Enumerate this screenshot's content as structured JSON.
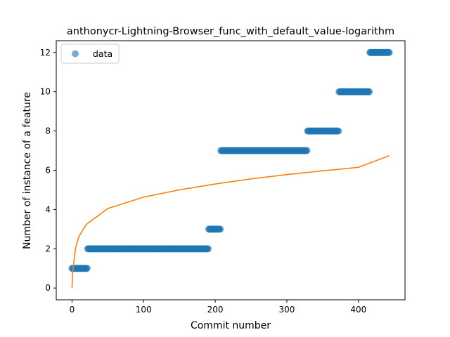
{
  "chart_data": {
    "type": "scatter",
    "title": "anthonycr-Lightning-Browser_func_with_default_value-logarithm",
    "xlabel": "Commit number",
    "ylabel": "Number of instance of a feature",
    "xlim": [
      -22,
      465
    ],
    "ylim": [
      -0.6,
      12.6
    ],
    "xticks": [
      0,
      100,
      200,
      300,
      400
    ],
    "yticks": [
      0,
      2,
      4,
      6,
      8,
      10,
      12
    ],
    "grid": false,
    "legend_position": "top-left",
    "series": [
      {
        "name": "data",
        "kind": "scatter",
        "color": "#1f77b4",
        "steps": [
          {
            "x_start": 0,
            "x_end": 21,
            "y": 1
          },
          {
            "x_start": 22,
            "x_end": 190,
            "y": 2
          },
          {
            "x_start": 191,
            "x_end": 207,
            "y": 3
          },
          {
            "x_start": 208,
            "x_end": 328,
            "y": 7
          },
          {
            "x_start": 329,
            "x_end": 372,
            "y": 8
          },
          {
            "x_start": 373,
            "x_end": 415,
            "y": 10
          },
          {
            "x_start": 416,
            "x_end": 443,
            "y": 12
          }
        ]
      },
      {
        "kind": "line",
        "color": "#ff7f0e",
        "fit": "logarithmic",
        "points": [
          [
            0,
            0
          ],
          [
            1,
            0.83
          ],
          [
            5,
            2.05
          ],
          [
            10,
            2.65
          ],
          [
            20,
            3.24
          ],
          [
            50,
            4.05
          ],
          [
            100,
            4.63
          ],
          [
            150,
            5.0
          ],
          [
            200,
            5.3
          ],
          [
            250,
            5.56
          ],
          [
            300,
            5.78
          ],
          [
            350,
            5.97
          ],
          [
            400,
            6.15
          ],
          [
            443,
            6.74
          ]
        ]
      }
    ]
  }
}
